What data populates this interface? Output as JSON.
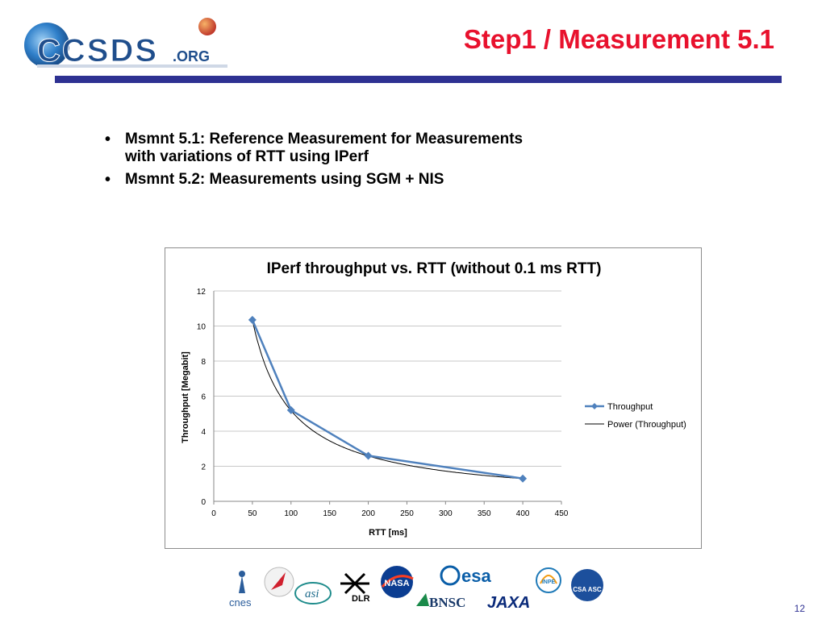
{
  "header": {
    "title": "Step1 / Measurement 5.1",
    "logo_text": "CCSDS.ORG",
    "rule_color": "#2e3192",
    "title_color": "#e8112d"
  },
  "bullets": [
    "Msmnt 5.1:  Reference Measurement for Measurements with variations of RTT using IPerf",
    "Msmnt 5.2: Measurements using SGM + NIS"
  ],
  "chart_data": {
    "type": "line",
    "title": "IPerf throughput vs. RTT (without 0.1 ms RTT)",
    "xlabel": "RTT [ms]",
    "ylabel": "Throughput  [Megabit]",
    "xlim": [
      0,
      450
    ],
    "ylim": [
      0,
      12
    ],
    "x_ticks": [
      "0",
      "50",
      "100",
      "150",
      "200",
      "250",
      "300",
      "350",
      "400",
      "450"
    ],
    "y_ticks": [
      "0",
      "2",
      "4",
      "6",
      "8",
      "10",
      "12"
    ],
    "grid": "horizontal",
    "legend_position": "right",
    "series": [
      {
        "name": "Throughput",
        "x": [
          50,
          100,
          200,
          400
        ],
        "y": [
          10.35,
          5.2,
          2.6,
          1.3
        ],
        "color": "#4f81bd",
        "marker": "diamond"
      },
      {
        "name": "Power (Throughput)",
        "fit": "power",
        "coef": 517.5,
        "exponent": -1,
        "color": "#000000"
      }
    ]
  },
  "footer": {
    "page_number": "12",
    "agency_logos": [
      "cnes",
      "asi",
      "DLR",
      "NASA",
      "esa",
      "BNSC",
      "JAXA",
      "INPE",
      "CSA ASC"
    ]
  }
}
